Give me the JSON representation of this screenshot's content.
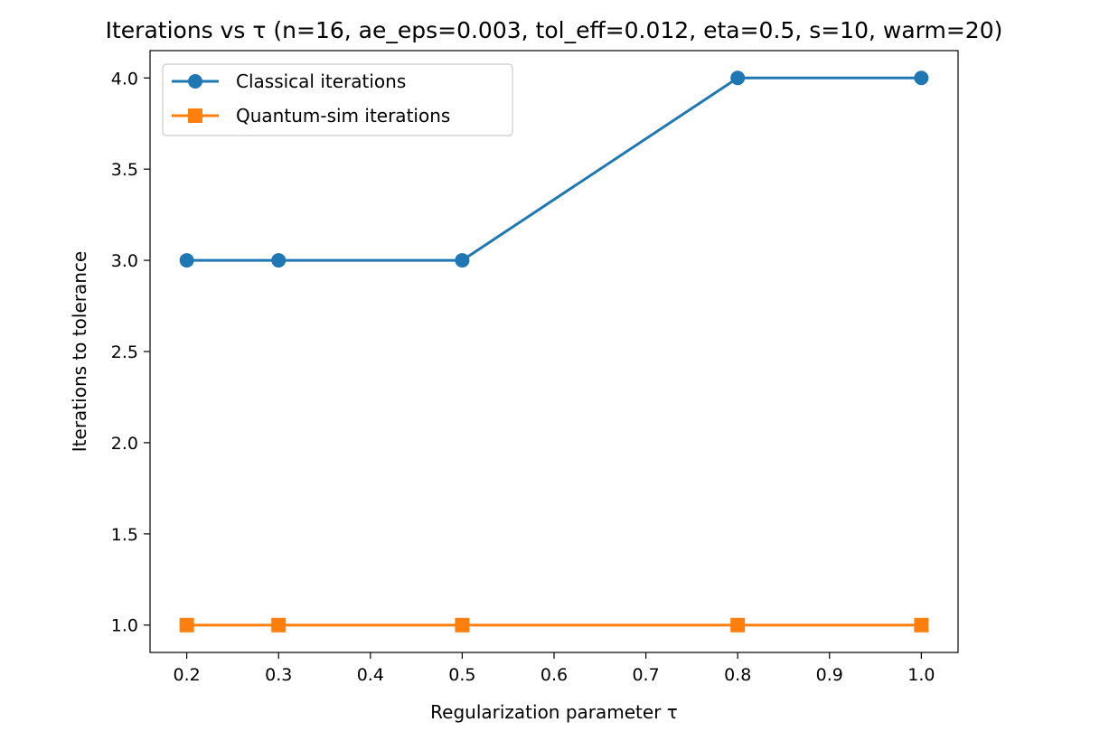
{
  "chart_data": {
    "type": "line",
    "title": "Iterations vs τ (n=16, ae_eps=0.003, tol_eff=0.012, eta=0.5, s=10, warm=20)",
    "xlabel": "Regularization parameter τ",
    "ylabel": "Iterations to tolerance",
    "x": [
      0.2,
      0.3,
      0.5,
      0.8,
      1.0
    ],
    "xlim": [
      0.16,
      1.04
    ],
    "ylim": [
      0.85,
      4.15
    ],
    "xticks": [
      "0.2",
      "0.3",
      "0.4",
      "0.5",
      "0.6",
      "0.7",
      "0.8",
      "0.9",
      "1.0"
    ],
    "yticks": [
      "1.0",
      "1.5",
      "2.0",
      "2.5",
      "3.0",
      "3.5",
      "4.0"
    ],
    "grid": false,
    "legend_position": "top-left",
    "series": [
      {
        "name": "Classical iterations",
        "values": [
          3,
          3,
          3,
          4,
          4
        ],
        "color": "#1f77b4",
        "marker": "circle"
      },
      {
        "name": "Quantum-sim iterations",
        "values": [
          1,
          1,
          1,
          1,
          1
        ],
        "color": "#ff7f0e",
        "marker": "square"
      }
    ]
  }
}
